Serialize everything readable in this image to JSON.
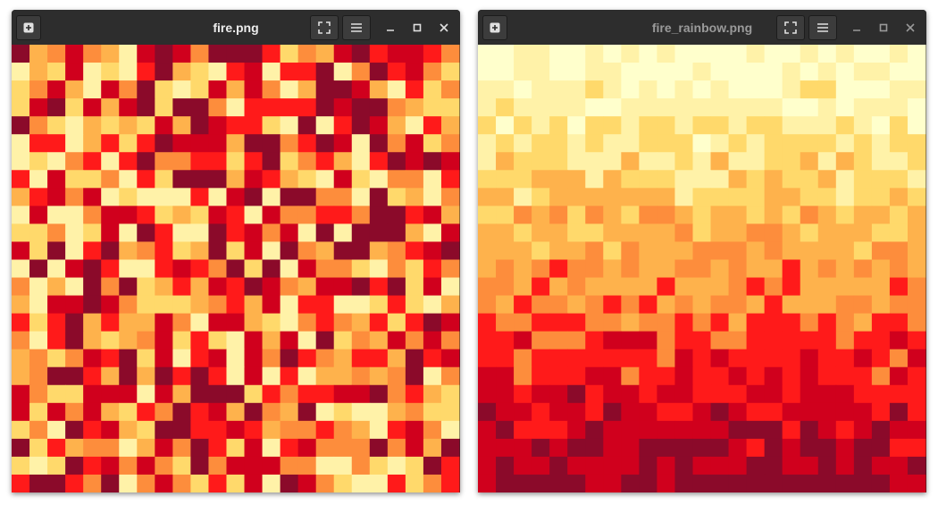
{
  "windows": [
    {
      "title": "fire.png"
    },
    {
      "title": "fire_rainbow.png"
    }
  ]
}
